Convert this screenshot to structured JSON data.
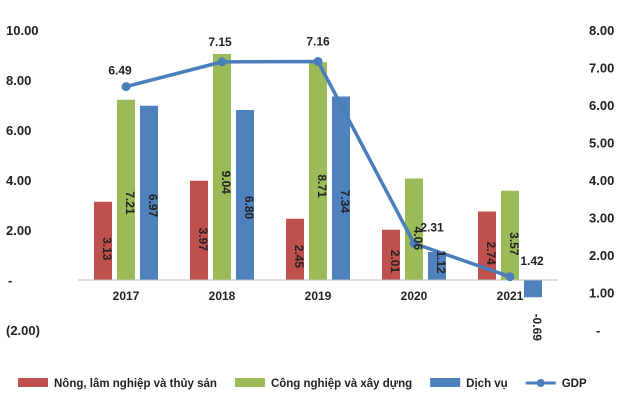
{
  "chart_data": {
    "type": "bar",
    "categories": [
      "2017",
      "2018",
      "2019",
      "2020",
      "2021"
    ],
    "series": [
      {
        "name": "Nông, lâm nghiệp và thủy sản",
        "values": [
          3.13,
          3.97,
          2.45,
          2.01,
          2.74
        ],
        "labels": [
          "3.13",
          "3.97",
          "2.45",
          "2.01",
          "2.74"
        ],
        "color": "#c0504d"
      },
      {
        "name": "Công nghiệp và xây dựng",
        "values": [
          7.21,
          9.04,
          8.71,
          4.06,
          3.57
        ],
        "labels": [
          "7.21",
          "9.04",
          "8.71",
          "4.06",
          "3.57"
        ],
        "color": "#9bbb59"
      },
      {
        "name": "Dịch vụ",
        "values": [
          6.97,
          6.8,
          7.34,
          1.12,
          -0.69
        ],
        "labels": [
          "6.97",
          "6.80",
          "7.34",
          "1.12",
          "-0.69"
        ],
        "color": "#4f81bd"
      }
    ],
    "line": {
      "name": "GDP",
      "values": [
        6.49,
        7.15,
        7.16,
        2.31,
        1.42
      ],
      "labels": [
        "6.49",
        "7.15",
        "7.16",
        "2.31",
        "1.42"
      ],
      "color": "#4a7ebb",
      "axis": "right"
    },
    "left_axis": {
      "ylim": [
        -2,
        10
      ],
      "ticks": [
        -2,
        0,
        2,
        4,
        6,
        8,
        10
      ],
      "tick_labels": [
        "(2.00)",
        "-",
        "2.00",
        "4.00",
        "6.00",
        "8.00",
        "10.00"
      ]
    },
    "right_axis": {
      "ylim": [
        0,
        8
      ],
      "ticks": [
        0,
        1,
        2,
        3,
        4,
        5,
        6,
        7,
        8
      ],
      "tick_labels": [
        "-",
        "1.00",
        "2.00",
        "3.00",
        "4.00",
        "5.00",
        "6.00",
        "7.00",
        "8.00"
      ]
    },
    "legend_position": "bottom",
    "title": "",
    "xlabel": "",
    "ylabel": ""
  }
}
